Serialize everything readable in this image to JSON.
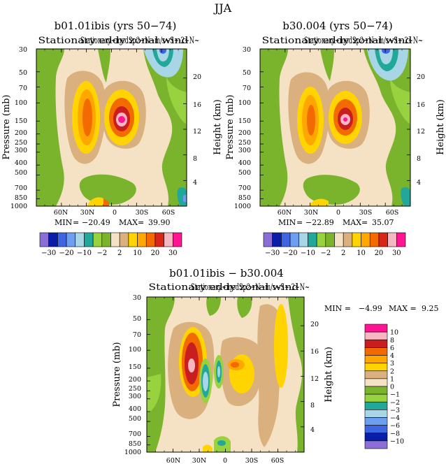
{
  "figure": {
    "title": "JJA"
  },
  "colors": {
    "panel_background": "#F5E2C4",
    "palette_main": [
      "#8C6FD6",
      "#0A1DA8",
      "#3E66E3",
      "#6E9EF0",
      "#A8D6E6",
      "#22A89A",
      "#98D23F",
      "#7AB32C",
      "#F5E2C4",
      "#D9B07E",
      "#FFD400",
      "#FFA600",
      "#F26A00",
      "#D92618",
      "#F7B7C2",
      "#FF1493"
    ],
    "palette_diff": [
      "#8C6FD6",
      "#0A1DA8",
      "#3E66E3",
      "#6E9EF0",
      "#A8D6E6",
      "#22A89A",
      "#98D23F",
      "#7AB32C",
      "#F5E2C4",
      "#D9B07E",
      "#FFD400",
      "#FFA600",
      "#F26A00",
      "#C81E20",
      "#F7B7C2",
      "#FF1493"
    ]
  },
  "chart_data": [
    {
      "type": "heatmap",
      "panel": "top-left",
      "title": "b01.01ibis (yrs 50−74)",
      "subtitle": "Stationary eddy zonal wind",
      "subtitle_overlap": "Stationary~medSp2~N~m/s~S~-2~N~",
      "ylabel": "Pressure (mb)",
      "ylabel_right": "Height (km)",
      "x_ticks": [
        "60N",
        "30N",
        "0",
        "30S",
        "60S"
      ],
      "x_tick_values": [
        60,
        30,
        0,
        -30,
        -60
      ],
      "xlim": [
        90,
        -90
      ],
      "y_ticks": [
        "30",
        "50",
        "70",
        "100",
        "150",
        "200",
        "250",
        "300",
        "400",
        "500",
        "700",
        "850",
        "1000"
      ],
      "y_tick_values": [
        30,
        50,
        70,
        100,
        150,
        200,
        250,
        300,
        400,
        500,
        700,
        850,
        1000
      ],
      "ylim": [
        1000,
        30
      ],
      "height_ticks": [
        "20",
        "16",
        "12",
        "8",
        "4"
      ],
      "height_tick_values": [
        20,
        16,
        12,
        8,
        4
      ],
      "stats": {
        "min_label": "MIN",
        "min": "−20.49",
        "max_label": "MAX",
        "max": "39.90"
      },
      "features": [
        {
          "lat": 33,
          "p": 160,
          "value": 22
        },
        {
          "lat": 7,
          "p": 150,
          "value": 39.9
        },
        {
          "lat": -48,
          "p": 32,
          "value": -14
        },
        {
          "lat": 18,
          "p": 990,
          "value": 12
        }
      ]
    },
    {
      "type": "heatmap",
      "panel": "top-right",
      "title": "b30.004 (yrs 50−74)",
      "subtitle": "Stationary eddy zonal wind",
      "subtitle_overlap": "Stationary~medSp2~N~m/s~S~-2~N~",
      "ylabel": "Pressure (mb)",
      "ylabel_right": "Height (km)",
      "x_ticks": [
        "60N",
        "30N",
        "0",
        "30S",
        "60S"
      ],
      "x_tick_values": [
        60,
        30,
        0,
        -30,
        -60
      ],
      "xlim": [
        90,
        -90
      ],
      "y_ticks": [
        "30",
        "50",
        "70",
        "100",
        "150",
        "200",
        "250",
        "300",
        "400",
        "500",
        "700",
        "850",
        "1000"
      ],
      "y_tick_values": [
        30,
        50,
        70,
        100,
        150,
        200,
        250,
        300,
        400,
        500,
        700,
        850,
        1000
      ],
      "ylim": [
        1000,
        30
      ],
      "height_ticks": [
        "20",
        "16",
        "12",
        "8",
        "4"
      ],
      "height_tick_values": [
        20,
        16,
        12,
        8,
        4
      ],
      "stats": {
        "min_label": "MIN",
        "min": "−22.89",
        "max_label": "MAX",
        "max": "35.07"
      },
      "features": [
        {
          "lat": 32,
          "p": 165,
          "value": 18
        },
        {
          "lat": 7,
          "p": 150,
          "value": 35
        },
        {
          "lat": -48,
          "p": 32,
          "value": -14
        },
        {
          "lat": 18,
          "p": 990,
          "value": 10
        }
      ]
    },
    {
      "type": "heatmap",
      "panel": "bottom",
      "title": "b01.01ibis − b30.004",
      "subtitle": "Stationary eddy zonal wind",
      "subtitle_overlap": "Stationary~medSp2~N~m/s~S~-2~N~",
      "ylabel": "Pressure (mb)",
      "ylabel_right": "Height (km)",
      "x_ticks": [
        "60N",
        "30N",
        "0",
        "30S",
        "60S"
      ],
      "x_tick_values": [
        60,
        30,
        0,
        -30,
        -60
      ],
      "xlim": [
        90,
        -90
      ],
      "y_ticks": [
        "30",
        "50",
        "70",
        "100",
        "150",
        "200",
        "250",
        "300",
        "400",
        "500",
        "700",
        "850",
        "1000"
      ],
      "y_tick_values": [
        30,
        50,
        70,
        100,
        150,
        200,
        250,
        300,
        400,
        500,
        700,
        850,
        1000
      ],
      "ylim": [
        1000,
        30
      ],
      "height_ticks": [
        "20",
        "16",
        "12",
        "8",
        "4"
      ],
      "height_tick_values": [
        20,
        16,
        12,
        8,
        4
      ],
      "stats": {
        "min_label": "MIN =",
        "min": "−4.99",
        "max_label": "MAX =",
        "max": "9.25"
      },
      "features": [
        {
          "lat": 35,
          "p": 140,
          "value": 9
        },
        {
          "lat": 20,
          "p": 160,
          "value": -4
        },
        {
          "lat": 7,
          "p": 160,
          "value": -3
        },
        {
          "lat": -8,
          "p": 150,
          "value": 4
        },
        {
          "lat": -45,
          "p": 50,
          "value": 2
        },
        {
          "lat": -55,
          "p": 200,
          "value": 2
        }
      ]
    }
  ],
  "colorbar_main": {
    "labels": [
      "−30",
      "−20",
      "−10",
      "−2",
      "2",
      "10",
      "20",
      "30"
    ],
    "levels": [
      -30,
      -20,
      -10,
      -2,
      2,
      10,
      20,
      30
    ],
    "n_boxes": 16
  },
  "colorbar_diff": {
    "labels": [
      "10",
      "8",
      "6",
      "4",
      "3",
      "2",
      "1",
      "0",
      "−1",
      "−2",
      "−3",
      "−4",
      "−6",
      "−8",
      "−10"
    ],
    "levels": [
      10,
      8,
      6,
      4,
      3,
      2,
      1,
      0,
      -1,
      -2,
      -3,
      -4,
      -6,
      -8,
      -10
    ],
    "n_boxes": 16
  }
}
